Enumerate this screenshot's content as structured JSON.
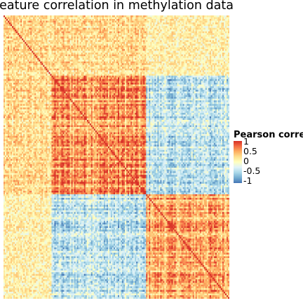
{
  "title": "ure-feature correlation in methylation data",
  "chart_data": {
    "type": "heatmap",
    "title": "ure-feature correlation in methylation data",
    "xlabel": "",
    "ylabel": "",
    "value_range": [
      -1,
      1
    ],
    "diagonal_value": 1,
    "n_features_approx": 160,
    "blocks": [
      {
        "from": 0.0,
        "to": 0.21
      },
      {
        "from": 0.21,
        "to": 0.63
      },
      {
        "from": 0.63,
        "to": 1.0
      }
    ],
    "block_mean_correlation": [
      [
        0.25,
        0.25,
        0.1
      ],
      [
        0.25,
        0.6,
        -0.4
      ],
      [
        0.1,
        -0.4,
        0.5
      ]
    ],
    "colors": [
      "#4575b4",
      "#74add1",
      "#abd9e9",
      "#e0f3f8",
      "#ffffbf",
      "#fee090",
      "#fdae61",
      "#f46d43",
      "#d73027"
    ]
  },
  "legend": {
    "title": "Pearson corre",
    "labels": [
      "1",
      "0.5",
      "0",
      "-0.5",
      "-1"
    ]
  }
}
